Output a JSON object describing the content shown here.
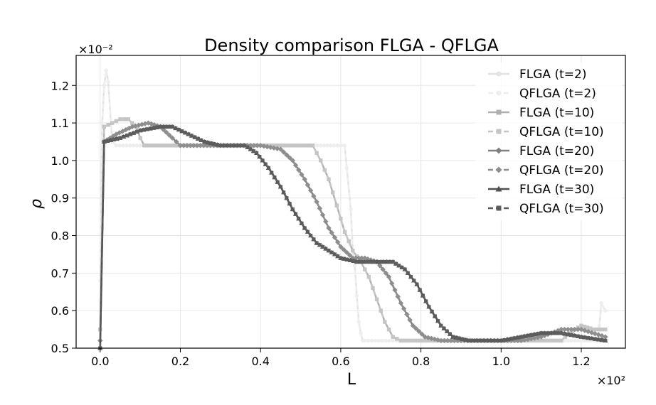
{
  "chart_data": {
    "type": "line",
    "title": "Density comparison FLGA - QFLGA",
    "xlabel": "L",
    "ylabel": "ρ",
    "x_multiplier_label": "×10²",
    "y_multiplier_label": "×10⁻²",
    "xlim": [
      -0.06,
      1.31
    ],
    "ylim": [
      0.5,
      1.28
    ],
    "x_ticks": [
      0.0,
      0.2,
      0.4,
      0.6,
      0.8,
      1.0,
      1.2
    ],
    "x_tick_labels": [
      "0.0",
      "0.2",
      "0.4",
      "0.6",
      "0.8",
      "1.0",
      "1.2"
    ],
    "y_ticks": [
      0.5,
      0.6,
      0.7,
      0.8,
      0.9,
      1.0,
      1.1,
      1.2
    ],
    "y_tick_labels": [
      "0.5",
      "0.6",
      "0.7",
      "0.8",
      "0.9",
      "1.0",
      "1.1",
      "1.2"
    ],
    "grid": true,
    "legend_position": "top-right",
    "series": [
      {
        "name": "FLGA (t=2)",
        "color": "#e3e3e3",
        "linestyle": "solid",
        "marker": "circle",
        "points": [
          [
            0.0,
            0.68
          ],
          [
            0.005,
            1.1
          ],
          [
            0.01,
            1.2
          ],
          [
            0.015,
            1.24
          ],
          [
            0.02,
            1.21
          ],
          [
            0.03,
            1.05
          ],
          [
            0.04,
            1.04
          ],
          [
            0.1,
            1.04
          ],
          [
            0.2,
            1.04
          ],
          [
            0.3,
            1.04
          ],
          [
            0.4,
            1.04
          ],
          [
            0.5,
            1.04
          ],
          [
            0.6,
            1.04
          ],
          [
            0.61,
            1.04
          ],
          [
            0.615,
            0.98
          ],
          [
            0.625,
            0.87
          ],
          [
            0.63,
            0.76
          ],
          [
            0.635,
            0.72
          ],
          [
            0.64,
            0.64
          ],
          [
            0.645,
            0.57
          ],
          [
            0.65,
            0.54
          ],
          [
            0.655,
            0.52
          ],
          [
            0.66,
            0.52
          ],
          [
            0.8,
            0.52
          ],
          [
            1.0,
            0.52
          ],
          [
            1.2,
            0.52
          ],
          [
            1.24,
            0.52
          ],
          [
            1.245,
            0.56
          ],
          [
            1.25,
            0.62
          ],
          [
            1.26,
            0.6
          ]
        ]
      },
      {
        "name": "QFLGA (t=2)",
        "color": "#eeeeee",
        "linestyle": "dashed",
        "marker": "circle",
        "points": [
          [
            0.0,
            0.68
          ],
          [
            0.005,
            1.1
          ],
          [
            0.01,
            1.2
          ],
          [
            0.015,
            1.24
          ],
          [
            0.02,
            1.21
          ],
          [
            0.03,
            1.05
          ],
          [
            0.04,
            1.04
          ],
          [
            0.1,
            1.04
          ],
          [
            0.2,
            1.04
          ],
          [
            0.3,
            1.04
          ],
          [
            0.4,
            1.04
          ],
          [
            0.5,
            1.04
          ],
          [
            0.6,
            1.04
          ],
          [
            0.61,
            1.04
          ],
          [
            0.615,
            0.98
          ],
          [
            0.625,
            0.87
          ],
          [
            0.63,
            0.76
          ],
          [
            0.635,
            0.72
          ],
          [
            0.64,
            0.64
          ],
          [
            0.645,
            0.57
          ],
          [
            0.65,
            0.54
          ],
          [
            0.655,
            0.52
          ],
          [
            0.66,
            0.52
          ],
          [
            0.8,
            0.52
          ],
          [
            1.0,
            0.52
          ],
          [
            1.2,
            0.52
          ],
          [
            1.24,
            0.52
          ],
          [
            1.245,
            0.56
          ],
          [
            1.25,
            0.62
          ],
          [
            1.26,
            0.6
          ]
        ]
      },
      {
        "name": "FLGA (t=10)",
        "color": "#b0b0b0",
        "linestyle": "solid",
        "marker": "square",
        "points": [
          [
            0.0,
            0.55
          ],
          [
            0.01,
            1.09
          ],
          [
            0.03,
            1.1
          ],
          [
            0.05,
            1.11
          ],
          [
            0.07,
            1.11
          ],
          [
            0.09,
            1.09
          ],
          [
            0.1,
            1.06
          ],
          [
            0.11,
            1.04
          ],
          [
            0.2,
            1.04
          ],
          [
            0.3,
            1.04
          ],
          [
            0.4,
            1.04
          ],
          [
            0.5,
            1.04
          ],
          [
            0.53,
            1.04
          ],
          [
            0.55,
            1.0
          ],
          [
            0.57,
            0.95
          ],
          [
            0.59,
            0.88
          ],
          [
            0.61,
            0.81
          ],
          [
            0.63,
            0.76
          ],
          [
            0.65,
            0.73
          ],
          [
            0.67,
            0.69
          ],
          [
            0.69,
            0.63
          ],
          [
            0.71,
            0.57
          ],
          [
            0.73,
            0.53
          ],
          [
            0.75,
            0.52
          ],
          [
            0.8,
            0.52
          ],
          [
            1.0,
            0.52
          ],
          [
            1.15,
            0.52
          ],
          [
            1.17,
            0.54
          ],
          [
            1.2,
            0.56
          ],
          [
            1.23,
            0.55
          ],
          [
            1.26,
            0.55
          ]
        ]
      },
      {
        "name": "QFLGA (t=10)",
        "color": "#c5c5c5",
        "linestyle": "dashed",
        "marker": "square",
        "points": [
          [
            0.0,
            0.55
          ],
          [
            0.01,
            1.09
          ],
          [
            0.03,
            1.1
          ],
          [
            0.05,
            1.11
          ],
          [
            0.07,
            1.11
          ],
          [
            0.09,
            1.09
          ],
          [
            0.1,
            1.06
          ],
          [
            0.11,
            1.04
          ],
          [
            0.2,
            1.04
          ],
          [
            0.3,
            1.04
          ],
          [
            0.4,
            1.04
          ],
          [
            0.5,
            1.04
          ],
          [
            0.53,
            1.04
          ],
          [
            0.55,
            1.0
          ],
          [
            0.57,
            0.95
          ],
          [
            0.59,
            0.88
          ],
          [
            0.61,
            0.81
          ],
          [
            0.63,
            0.76
          ],
          [
            0.65,
            0.73
          ],
          [
            0.67,
            0.69
          ],
          [
            0.69,
            0.63
          ],
          [
            0.71,
            0.57
          ],
          [
            0.73,
            0.53
          ],
          [
            0.75,
            0.52
          ],
          [
            0.8,
            0.52
          ],
          [
            1.0,
            0.52
          ],
          [
            1.15,
            0.52
          ],
          [
            1.17,
            0.54
          ],
          [
            1.2,
            0.56
          ],
          [
            1.23,
            0.55
          ],
          [
            1.26,
            0.55
          ]
        ]
      },
      {
        "name": "FLGA (t=20)",
        "color": "#808080",
        "linestyle": "solid",
        "marker": "diamond",
        "points": [
          [
            0.0,
            0.52
          ],
          [
            0.01,
            1.05
          ],
          [
            0.04,
            1.07
          ],
          [
            0.08,
            1.09
          ],
          [
            0.12,
            1.1
          ],
          [
            0.15,
            1.09
          ],
          [
            0.18,
            1.06
          ],
          [
            0.2,
            1.04
          ],
          [
            0.3,
            1.04
          ],
          [
            0.4,
            1.04
          ],
          [
            0.45,
            1.03
          ],
          [
            0.48,
            1.0
          ],
          [
            0.51,
            0.95
          ],
          [
            0.54,
            0.89
          ],
          [
            0.57,
            0.82
          ],
          [
            0.6,
            0.77
          ],
          [
            0.63,
            0.74
          ],
          [
            0.66,
            0.74
          ],
          [
            0.69,
            0.73
          ],
          [
            0.72,
            0.69
          ],
          [
            0.75,
            0.62
          ],
          [
            0.78,
            0.56
          ],
          [
            0.81,
            0.53
          ],
          [
            0.85,
            0.52
          ],
          [
            1.0,
            0.52
          ],
          [
            1.05,
            0.52
          ],
          [
            1.1,
            0.53
          ],
          [
            1.15,
            0.55
          ],
          [
            1.2,
            0.55
          ],
          [
            1.26,
            0.53
          ]
        ]
      },
      {
        "name": "QFLGA (t=20)",
        "color": "#8e8e8e",
        "linestyle": "dashed",
        "marker": "diamond",
        "points": [
          [
            0.0,
            0.52
          ],
          [
            0.01,
            1.05
          ],
          [
            0.04,
            1.07
          ],
          [
            0.08,
            1.09
          ],
          [
            0.12,
            1.1
          ],
          [
            0.15,
            1.09
          ],
          [
            0.18,
            1.06
          ],
          [
            0.2,
            1.04
          ],
          [
            0.3,
            1.04
          ],
          [
            0.4,
            1.04
          ],
          [
            0.45,
            1.03
          ],
          [
            0.48,
            1.0
          ],
          [
            0.51,
            0.95
          ],
          [
            0.54,
            0.89
          ],
          [
            0.57,
            0.82
          ],
          [
            0.6,
            0.77
          ],
          [
            0.63,
            0.74
          ],
          [
            0.66,
            0.74
          ],
          [
            0.69,
            0.73
          ],
          [
            0.72,
            0.69
          ],
          [
            0.75,
            0.62
          ],
          [
            0.78,
            0.56
          ],
          [
            0.81,
            0.53
          ],
          [
            0.85,
            0.52
          ],
          [
            1.0,
            0.52
          ],
          [
            1.05,
            0.52
          ],
          [
            1.1,
            0.53
          ],
          [
            1.15,
            0.55
          ],
          [
            1.2,
            0.55
          ],
          [
            1.26,
            0.53
          ]
        ]
      },
      {
        "name": "FLGA (t=30)",
        "color": "#505050",
        "linestyle": "solid",
        "marker": "triangle",
        "points": [
          [
            0.0,
            0.5
          ],
          [
            0.01,
            1.05
          ],
          [
            0.05,
            1.06
          ],
          [
            0.1,
            1.08
          ],
          [
            0.15,
            1.09
          ],
          [
            0.18,
            1.09
          ],
          [
            0.22,
            1.07
          ],
          [
            0.26,
            1.05
          ],
          [
            0.3,
            1.04
          ],
          [
            0.36,
            1.04
          ],
          [
            0.39,
            1.02
          ],
          [
            0.42,
            0.98
          ],
          [
            0.45,
            0.93
          ],
          [
            0.48,
            0.87
          ],
          [
            0.51,
            0.82
          ],
          [
            0.54,
            0.78
          ],
          [
            0.57,
            0.76
          ],
          [
            0.6,
            0.74
          ],
          [
            0.64,
            0.73
          ],
          [
            0.7,
            0.73
          ],
          [
            0.73,
            0.73
          ],
          [
            0.76,
            0.71
          ],
          [
            0.79,
            0.67
          ],
          [
            0.82,
            0.61
          ],
          [
            0.85,
            0.56
          ],
          [
            0.88,
            0.53
          ],
          [
            0.92,
            0.52
          ],
          [
            1.0,
            0.52
          ],
          [
            1.05,
            0.53
          ],
          [
            1.1,
            0.54
          ],
          [
            1.15,
            0.54
          ],
          [
            1.2,
            0.53
          ],
          [
            1.26,
            0.52
          ]
        ]
      },
      {
        "name": "QFLGA (t=30)",
        "color": "#5c5c5c",
        "linestyle": "dashed",
        "marker": "square",
        "points": [
          [
            0.0,
            0.5
          ],
          [
            0.01,
            1.05
          ],
          [
            0.05,
            1.06
          ],
          [
            0.1,
            1.08
          ],
          [
            0.15,
            1.09
          ],
          [
            0.18,
            1.09
          ],
          [
            0.22,
            1.07
          ],
          [
            0.26,
            1.05
          ],
          [
            0.3,
            1.04
          ],
          [
            0.36,
            1.04
          ],
          [
            0.39,
            1.02
          ],
          [
            0.42,
            0.98
          ],
          [
            0.45,
            0.93
          ],
          [
            0.48,
            0.87
          ],
          [
            0.51,
            0.82
          ],
          [
            0.54,
            0.78
          ],
          [
            0.57,
            0.76
          ],
          [
            0.6,
            0.74
          ],
          [
            0.64,
            0.73
          ],
          [
            0.7,
            0.73
          ],
          [
            0.73,
            0.73
          ],
          [
            0.76,
            0.71
          ],
          [
            0.79,
            0.67
          ],
          [
            0.82,
            0.61
          ],
          [
            0.85,
            0.56
          ],
          [
            0.88,
            0.53
          ],
          [
            0.92,
            0.52
          ],
          [
            1.0,
            0.52
          ],
          [
            1.05,
            0.53
          ],
          [
            1.1,
            0.54
          ],
          [
            1.15,
            0.54
          ],
          [
            1.2,
            0.53
          ],
          [
            1.26,
            0.52
          ]
        ]
      }
    ]
  }
}
